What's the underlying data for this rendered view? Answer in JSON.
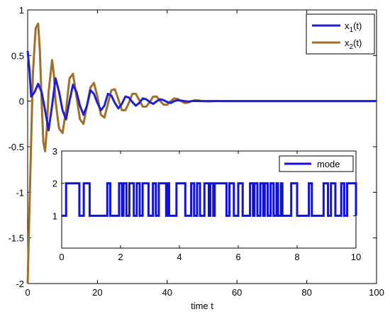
{
  "chart_data": [
    {
      "type": "line",
      "title": "",
      "xlabel": "time t",
      "ylabel": "",
      "xlim": [
        0,
        100
      ],
      "ylim": [
        -2,
        1
      ],
      "grid": false,
      "legend_position": "top-right",
      "x_ticks": [
        0,
        20,
        40,
        60,
        80,
        100
      ],
      "y_ticks": [
        1,
        0.5,
        0,
        -0.5,
        -1,
        -1.5,
        -2
      ],
      "series": [
        {
          "name": "x1(t)",
          "name_main": "x",
          "name_sub": "1",
          "name_suffix": "(t)",
          "color": "#1f1fd1",
          "x": [
            0,
            0.5,
            1,
            2,
            3,
            4,
            5,
            6,
            7,
            8,
            9,
            10,
            11,
            12,
            13,
            14,
            15,
            16,
            17,
            18,
            19,
            20,
            21,
            22,
            23,
            24,
            25,
            26,
            27,
            28,
            29,
            30,
            31,
            32,
            33,
            34,
            35,
            36,
            37,
            38,
            39,
            40,
            41,
            42,
            43,
            44,
            45,
            46,
            47,
            48,
            49,
            50,
            52,
            54,
            56,
            58,
            60,
            65,
            70,
            80,
            90,
            100
          ],
          "y": [
            0.55,
            0.35,
            0.05,
            0.1,
            0.19,
            0.1,
            -0.1,
            -0.32,
            -0.05,
            0.25,
            0.1,
            -0.1,
            -0.2,
            0.0,
            0.18,
            0.1,
            -0.05,
            -0.15,
            -0.05,
            0.12,
            0.08,
            -0.02,
            -0.1,
            -0.05,
            0.08,
            0.06,
            -0.02,
            -0.08,
            -0.03,
            0.05,
            0.04,
            -0.01,
            -0.05,
            -0.02,
            0.03,
            0.02,
            -0.01,
            -0.03,
            0.0,
            0.02,
            0.01,
            -0.01,
            -0.02,
            0.0,
            0.01,
            0.005,
            0.0,
            -0.005,
            0.0,
            0.002,
            0.0,
            0.0,
            0.0,
            0.0,
            0.0,
            0.0,
            0.0,
            0.0,
            0.0,
            0.0,
            0.0,
            0.0
          ]
        },
        {
          "name": "x2(t)",
          "name_main": "x",
          "name_sub": "2",
          "name_suffix": "(t)",
          "color": "#a0702a",
          "x": [
            0,
            0.7,
            1.5,
            2.3,
            3,
            3.5,
            4,
            4.5,
            5,
            5.5,
            6,
            7,
            7.5,
            8,
            9,
            10,
            11,
            12,
            13,
            14,
            15,
            16,
            17,
            18,
            19,
            20,
            21,
            22,
            23,
            24,
            25,
            26,
            27,
            28,
            29,
            30,
            31,
            32,
            33,
            34,
            35,
            36,
            37,
            38,
            39,
            40,
            41,
            42,
            43,
            44,
            45,
            46,
            47,
            48,
            49,
            50,
            52,
            54,
            56,
            58,
            60,
            65,
            70,
            80,
            90,
            100
          ],
          "y": [
            -2.0,
            -0.9,
            0.3,
            0.8,
            0.85,
            0.55,
            0.0,
            -0.45,
            -0.55,
            -0.3,
            0.1,
            0.45,
            0.3,
            0.0,
            -0.3,
            -0.35,
            -0.1,
            0.25,
            0.3,
            0.05,
            -0.2,
            -0.25,
            -0.05,
            0.15,
            0.2,
            0.05,
            -0.15,
            -0.18,
            -0.03,
            0.12,
            0.13,
            0.02,
            -0.1,
            -0.1,
            -0.02,
            0.08,
            0.08,
            0.01,
            -0.06,
            -0.06,
            -0.01,
            0.05,
            0.05,
            0.0,
            -0.04,
            -0.04,
            0.0,
            0.03,
            0.025,
            0.0,
            -0.02,
            -0.015,
            0.0,
            0.01,
            0.008,
            0.0,
            -0.004,
            0.002,
            0.0,
            0.0,
            0.0,
            0.0,
            0.0,
            0.0,
            0.0,
            0.0
          ]
        }
      ]
    },
    {
      "type": "line",
      "step": true,
      "title": "",
      "xlabel": "",
      "ylabel": "",
      "xlim": [
        0,
        10
      ],
      "ylim": [
        0,
        3
      ],
      "grid": false,
      "legend_position": "top-right",
      "x_ticks": [
        0,
        2,
        4,
        6,
        8,
        10
      ],
      "y_ticks": [
        3,
        2,
        1
      ],
      "series": [
        {
          "name": "mode",
          "color": "#1010e0",
          "x": [
            0,
            0.15,
            0.6,
            0.75,
            0.95,
            1.55,
            1.65,
            1.95,
            2.05,
            2.1,
            2.2,
            2.3,
            2.45,
            2.55,
            2.65,
            2.75,
            2.95,
            3.1,
            3.2,
            3.3,
            3.55,
            3.6,
            3.65,
            3.9,
            4.2,
            4.4,
            4.5,
            4.6,
            4.7,
            4.85,
            5.0,
            5.05,
            5.15,
            5.2,
            5.6,
            5.7,
            5.85,
            6.0,
            6.15,
            6.4,
            6.5,
            6.55,
            6.65,
            6.75,
            6.85,
            6.9,
            7.0,
            7.1,
            7.2,
            7.3,
            7.35,
            7.45,
            7.5,
            7.8,
            8.0,
            8.4,
            8.5,
            8.9,
            9.05,
            9.15,
            9.3,
            9.5,
            9.6,
            9.7,
            10.0
          ],
          "y": [
            1,
            2,
            1,
            2,
            1,
            2,
            1,
            2,
            1,
            2,
            1,
            2,
            1,
            2,
            1,
            2,
            1,
            2,
            1,
            2,
            1,
            2,
            1,
            2,
            1,
            2,
            1,
            2,
            1,
            2,
            1,
            2,
            1,
            2,
            1,
            2,
            1,
            2,
            1,
            2,
            1,
            2,
            1,
            2,
            1,
            2,
            1,
            2,
            1,
            2,
            1,
            2,
            1,
            2,
            1,
            2,
            1,
            2,
            1,
            2,
            1,
            2,
            1,
            2,
            1
          ]
        }
      ]
    }
  ]
}
